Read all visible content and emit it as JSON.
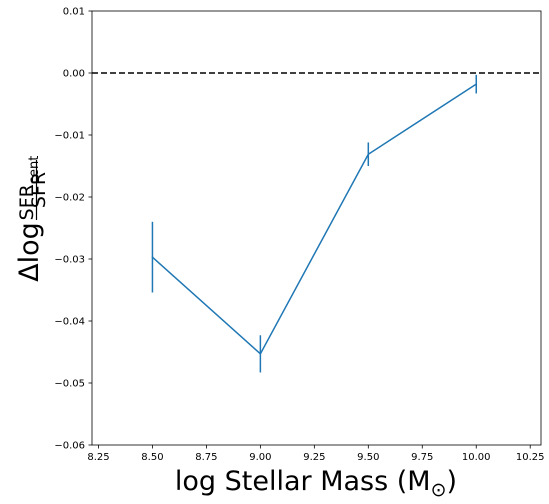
{
  "chart_data": {
    "type": "line",
    "title": "",
    "xlabel_main": "log Stellar Mass (M",
    "xlabel_sub": "⊙",
    "xlabel_end": ")",
    "ylabel_prefix": "Δlog",
    "ylabel_num_main": "SFR",
    "ylabel_num_sub": "cent",
    "ylabel_den": "SFR",
    "xlim": [
      8.22,
      10.3
    ],
    "ylim": [
      -0.06,
      0.01
    ],
    "x_ticks": [
      8.25,
      8.5,
      8.75,
      9.0,
      9.25,
      9.5,
      9.75,
      10.0,
      10.25
    ],
    "x_tick_labels": [
      "8.25",
      "8.50",
      "8.75",
      "9.00",
      "9.25",
      "9.50",
      "9.75",
      "10.00",
      "10.25"
    ],
    "y_ticks": [
      -0.06,
      -0.05,
      -0.04,
      -0.03,
      -0.02,
      -0.01,
      0.0,
      0.01
    ],
    "y_tick_labels": [
      "−0.06",
      "−0.05",
      "−0.04",
      "−0.03",
      "−0.02",
      "−0.01",
      "0.00",
      "0.01"
    ],
    "series": [
      {
        "x": [
          8.5,
          9.0,
          9.5,
          10.0
        ],
        "y": [
          -0.0297,
          -0.0453,
          -0.0131,
          -0.0018
        ],
        "yerr": [
          0.0057,
          0.003,
          0.0019,
          0.0015
        ],
        "color": "#1f77b4"
      }
    ],
    "reference_line": {
      "y": 0.0,
      "style": "dashed",
      "color": "#000000"
    },
    "grid": false,
    "legend": "none"
  }
}
